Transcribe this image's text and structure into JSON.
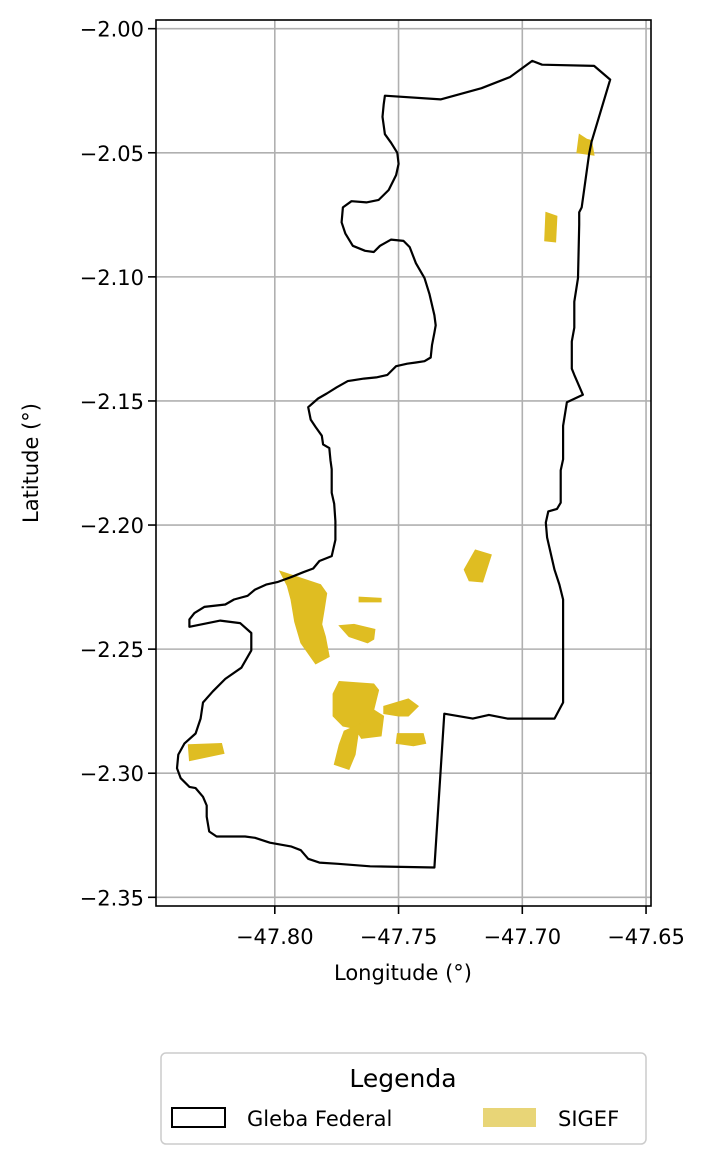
{
  "chart_data": {
    "type": "map",
    "xlabel": "Longitude (°)",
    "ylabel": "Latitude (°)",
    "xlim": [
      -47.848,
      -47.648
    ],
    "ylim": [
      -2.3535,
      -1.9965
    ],
    "x_ticks": [
      -47.8,
      -47.75,
      -47.7,
      -47.65
    ],
    "x_tick_labels": [
      "−47.80",
      "−47.75",
      "−47.70",
      "−47.65"
    ],
    "y_ticks": [
      -2.0,
      -2.05,
      -2.1,
      -2.15,
      -2.2,
      -2.25,
      -2.3,
      -2.35
    ],
    "y_tick_labels": [
      "−2.00",
      "−2.05",
      "−2.10",
      "−2.15",
      "−2.20",
      "−2.25",
      "−2.30",
      "−2.35"
    ],
    "grid": true,
    "legend": {
      "title": "Legenda",
      "placement": "below plot",
      "entries": [
        {
          "label": "Gleba Federal",
          "style": "outline",
          "color": "#000000"
        },
        {
          "label": "SIGEF",
          "style": "fill",
          "color": "#e8d577"
        }
      ]
    },
    "series": [
      {
        "name": "Gleba Federal",
        "kind": "outline",
        "color": "#000000",
        "polygon": [
          [
            -47.7555,
            -2.027
          ],
          [
            -47.733,
            -2.0285
          ],
          [
            -47.7165,
            -2.024
          ],
          [
            -47.705,
            -2.0195
          ],
          [
            -47.696,
            -2.013
          ],
          [
            -47.692,
            -2.0145
          ],
          [
            -47.671,
            -2.015
          ],
          [
            -47.6645,
            -2.0205
          ],
          [
            -47.672,
            -2.0455
          ],
          [
            -47.673,
            -2.0505
          ],
          [
            -47.676,
            -2.072
          ],
          [
            -47.677,
            -2.074
          ],
          [
            -47.677,
            -2.079
          ],
          [
            -47.6775,
            -2.1005
          ],
          [
            -47.679,
            -2.11
          ],
          [
            -47.679,
            -2.1205
          ],
          [
            -47.68,
            -2.126
          ],
          [
            -47.68,
            -2.137
          ],
          [
            -47.679,
            -2.1395
          ],
          [
            -47.6755,
            -2.1475
          ],
          [
            -47.682,
            -2.1505
          ],
          [
            -47.6835,
            -2.16
          ],
          [
            -47.6835,
            -2.1735
          ],
          [
            -47.6845,
            -2.178
          ],
          [
            -47.6845,
            -2.191
          ],
          [
            -47.686,
            -2.1935
          ],
          [
            -47.6895,
            -2.1945
          ],
          [
            -47.6905,
            -2.199
          ],
          [
            -47.69,
            -2.205
          ],
          [
            -47.687,
            -2.218
          ],
          [
            -47.685,
            -2.224
          ],
          [
            -47.6835,
            -2.23
          ],
          [
            -47.6835,
            -2.2715
          ],
          [
            -47.687,
            -2.278
          ],
          [
            -47.706,
            -2.278
          ],
          [
            -47.7135,
            -2.2765
          ],
          [
            -47.72,
            -2.278
          ],
          [
            -47.7315,
            -2.276
          ],
          [
            -47.7355,
            -2.338
          ],
          [
            -47.7615,
            -2.3375
          ],
          [
            -47.7745,
            -2.3365
          ],
          [
            -47.782,
            -2.336
          ],
          [
            -47.7865,
            -2.3345
          ],
          [
            -47.7895,
            -2.331
          ],
          [
            -47.7935,
            -2.3295
          ],
          [
            -47.802,
            -2.328
          ],
          [
            -47.808,
            -2.326
          ],
          [
            -47.812,
            -2.3255
          ],
          [
            -47.8235,
            -2.3255
          ],
          [
            -47.8265,
            -2.3235
          ],
          [
            -47.8275,
            -2.3175
          ],
          [
            -47.8275,
            -2.313
          ],
          [
            -47.829,
            -2.3095
          ],
          [
            -47.832,
            -2.306
          ],
          [
            -47.8345,
            -2.3055
          ],
          [
            -47.838,
            -2.302
          ],
          [
            -47.8395,
            -2.298
          ],
          [
            -47.839,
            -2.2925
          ],
          [
            -47.8365,
            -2.288
          ],
          [
            -47.832,
            -2.284
          ],
          [
            -47.83,
            -2.278
          ],
          [
            -47.829,
            -2.2715
          ],
          [
            -47.825,
            -2.267
          ],
          [
            -47.82,
            -2.262
          ],
          [
            -47.8135,
            -2.2575
          ],
          [
            -47.8095,
            -2.2505
          ],
          [
            -47.8095,
            -2.2435
          ],
          [
            -47.814,
            -2.2395
          ],
          [
            -47.822,
            -2.2385
          ],
          [
            -47.8295,
            -2.24
          ],
          [
            -47.8345,
            -2.241
          ],
          [
            -47.8345,
            -2.238
          ],
          [
            -47.8325,
            -2.2355
          ],
          [
            -47.8285,
            -2.233
          ],
          [
            -47.82,
            -2.232
          ],
          [
            -47.8165,
            -2.23
          ],
          [
            -47.811,
            -2.2285
          ],
          [
            -47.808,
            -2.226
          ],
          [
            -47.8035,
            -2.224
          ],
          [
            -47.799,
            -2.223
          ],
          [
            -47.7935,
            -2.221
          ],
          [
            -47.7885,
            -2.219
          ],
          [
            -47.7845,
            -2.2175
          ],
          [
            -47.782,
            -2.2145
          ],
          [
            -47.777,
            -2.2125
          ],
          [
            -47.7755,
            -2.206
          ],
          [
            -47.7755,
            -2.1985
          ],
          [
            -47.776,
            -2.1915
          ],
          [
            -47.777,
            -2.187
          ],
          [
            -47.777,
            -2.1775
          ],
          [
            -47.7775,
            -2.174
          ],
          [
            -47.778,
            -2.169
          ],
          [
            -47.7805,
            -2.1675
          ],
          [
            -47.781,
            -2.164
          ],
          [
            -47.7835,
            -2.1605
          ],
          [
            -47.7855,
            -2.1575
          ],
          [
            -47.7865,
            -2.1525
          ],
          [
            -47.7825,
            -2.149
          ],
          [
            -47.779,
            -2.147
          ],
          [
            -47.775,
            -2.1445
          ],
          [
            -47.7705,
            -2.142
          ],
          [
            -47.764,
            -2.141
          ],
          [
            -47.759,
            -2.1405
          ],
          [
            -47.7545,
            -2.1395
          ],
          [
            -47.7525,
            -2.1375
          ],
          [
            -47.751,
            -2.136
          ],
          [
            -47.7465,
            -2.135
          ],
          [
            -47.743,
            -2.1345
          ],
          [
            -47.7395,
            -2.134
          ],
          [
            -47.737,
            -2.1325
          ],
          [
            -47.7365,
            -2.1275
          ],
          [
            -47.7355,
            -2.1225
          ],
          [
            -47.735,
            -2.1195
          ],
          [
            -47.7355,
            -2.1155
          ],
          [
            -47.7375,
            -2.107
          ],
          [
            -47.7395,
            -2.1005
          ],
          [
            -47.743,
            -2.0945
          ],
          [
            -47.7455,
            -2.088
          ],
          [
            -47.748,
            -2.0855
          ],
          [
            -47.753,
            -2.085
          ],
          [
            -47.7575,
            -2.0875
          ],
          [
            -47.76,
            -2.09
          ],
          [
            -47.7635,
            -2.0895
          ],
          [
            -47.7685,
            -2.0875
          ],
          [
            -47.7715,
            -2.0825
          ],
          [
            -47.773,
            -2.078
          ],
          [
            -47.7725,
            -2.072
          ],
          [
            -47.769,
            -2.0695
          ],
          [
            -47.763,
            -2.07
          ],
          [
            -47.758,
            -2.069
          ],
          [
            -47.754,
            -2.065
          ],
          [
            -47.751,
            -2.059
          ],
          [
            -47.75,
            -2.0545
          ],
          [
            -47.7505,
            -2.05
          ],
          [
            -47.753,
            -2.046
          ],
          [
            -47.7555,
            -2.0425
          ],
          [
            -47.7565,
            -2.0355
          ],
          [
            -47.756,
            -2.0305
          ],
          [
            -47.7555,
            -2.027
          ]
        ]
      },
      {
        "name": "SIGEF",
        "kind": "fill",
        "color": "#dfbd22",
        "polygons": [
          [
            [
              -47.677,
              -2.0425
            ],
            [
              -47.674,
              -2.0445
            ],
            [
              -47.672,
              -2.045
            ],
            [
              -47.671,
              -2.051
            ],
            [
              -47.678,
              -2.05
            ]
          ],
          [
            [
              -47.6905,
              -2.074
            ],
            [
              -47.686,
              -2.0755
            ],
            [
              -47.6865,
              -2.086
            ],
            [
              -47.691,
              -2.0855
            ]
          ],
          [
            [
              -47.719,
              -2.21
            ],
            [
              -47.7125,
              -2.212
            ],
            [
              -47.716,
              -2.223
            ],
            [
              -47.7215,
              -2.2225
            ],
            [
              -47.7235,
              -2.218
            ]
          ],
          [
            [
              -47.798,
              -2.2185
            ],
            [
              -47.7815,
              -2.224
            ],
            [
              -47.779,
              -2.2275
            ],
            [
              -47.78,
              -2.234
            ],
            [
              -47.781,
              -2.24
            ],
            [
              -47.7795,
              -2.245
            ],
            [
              -47.778,
              -2.253
            ],
            [
              -47.7835,
              -2.256
            ],
            [
              -47.7895,
              -2.2475
            ],
            [
              -47.792,
              -2.239
            ],
            [
              -47.7935,
              -2.23
            ],
            [
              -47.795,
              -2.2245
            ]
          ],
          [
            [
              -47.774,
              -2.263
            ],
            [
              -47.76,
              -2.264
            ],
            [
              -47.758,
              -2.2665
            ],
            [
              -47.76,
              -2.2745
            ],
            [
              -47.756,
              -2.277
            ],
            [
              -47.757,
              -2.285
            ],
            [
              -47.765,
              -2.286
            ],
            [
              -47.7675,
              -2.282
            ],
            [
              -47.7725,
              -2.281
            ],
            [
              -47.7765,
              -2.277
            ],
            [
              -47.7765,
              -2.268
            ]
          ],
          [
            [
              -47.768,
              -2.24
            ],
            [
              -47.7595,
              -2.242
            ],
            [
              -47.76,
              -2.246
            ],
            [
              -47.7625,
              -2.2475
            ],
            [
              -47.77,
              -2.245
            ],
            [
              -47.774,
              -2.2405
            ]
          ],
          [
            [
              -47.766,
              -2.229
            ],
            [
              -47.757,
              -2.2295
            ],
            [
              -47.757,
              -2.231
            ],
            [
              -47.766,
              -2.231
            ]
          ],
          [
            [
              -47.762,
              -2.2785
            ],
            [
              -47.766,
              -2.282
            ],
            [
              -47.7675,
              -2.2925
            ],
            [
              -47.77,
              -2.2985
            ],
            [
              -47.776,
              -2.2965
            ],
            [
              -47.774,
              -2.2885
            ],
            [
              -47.772,
              -2.283
            ]
          ],
          [
            [
              -47.756,
              -2.273
            ],
            [
              -47.746,
              -2.27
            ],
            [
              -47.742,
              -2.273
            ],
            [
              -47.746,
              -2.277
            ],
            [
              -47.75,
              -2.277
            ],
            [
              -47.756,
              -2.276
            ]
          ],
          [
            [
              -47.7505,
              -2.284
            ],
            [
              -47.74,
              -2.284
            ],
            [
              -47.739,
              -2.288
            ],
            [
              -47.744,
              -2.289
            ],
            [
              -47.751,
              -2.288
            ]
          ],
          [
            [
              -47.835,
              -2.2885
            ],
            [
              -47.8215,
              -2.288
            ],
            [
              -47.8205,
              -2.292
            ],
            [
              -47.8345,
              -2.295
            ]
          ]
        ]
      }
    ]
  }
}
